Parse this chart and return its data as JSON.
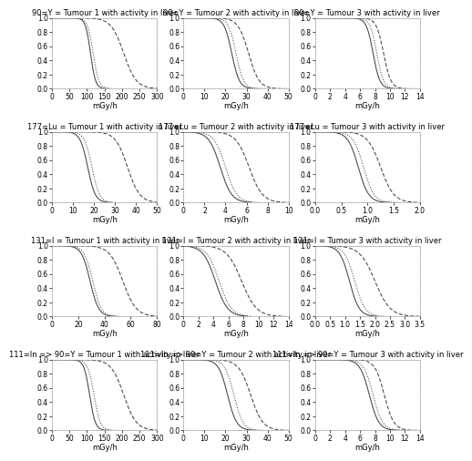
{
  "subplots": [
    {
      "title": "90=Y = Tumour 1 with activity in liver",
      "xlabel": "mGy/h",
      "xlim": [
        0,
        300
      ],
      "xticks": [
        0,
        50,
        100,
        150,
        200,
        250,
        300
      ],
      "curves": [
        {
          "x_start": 90,
          "x_end": 130,
          "style": "solid"
        },
        {
          "x_start": 95,
          "x_end": 140,
          "style": "dotted"
        },
        {
          "x_start": 155,
          "x_end": 255,
          "style": "dashed"
        }
      ]
    },
    {
      "title": "90=Y = Tumour 2 with activity in liver",
      "xlabel": "mGy/h",
      "xlim": [
        0,
        50
      ],
      "xticks": [
        0,
        10,
        20,
        30,
        40,
        50
      ],
      "curves": [
        {
          "x_start": 18,
          "x_end": 28,
          "style": "solid"
        },
        {
          "x_start": 20,
          "x_end": 30,
          "style": "dotted"
        },
        {
          "x_start": 24,
          "x_end": 38,
          "style": "dashed"
        }
      ]
    },
    {
      "title": "90=Y = Tumour 3 with activity in liver",
      "xlabel": "mGy/h",
      "xlim": [
        0,
        14
      ],
      "xticks": [
        0,
        2,
        4,
        6,
        8,
        10,
        12,
        14
      ],
      "curves": [
        {
          "x_start": 6.5,
          "x_end": 9.0,
          "style": "solid"
        },
        {
          "x_start": 7.0,
          "x_end": 9.5,
          "style": "dotted"
        },
        {
          "x_start": 7.8,
          "x_end": 10.5,
          "style": "dashed"
        }
      ]
    },
    {
      "title": "177=Lu = Tumour 1 with activity in liver",
      "xlabel": "mGy/h",
      "xlim": [
        0,
        50
      ],
      "xticks": [
        0,
        10,
        20,
        30,
        40,
        50
      ],
      "curves": [
        {
          "x_start": 12,
          "x_end": 22,
          "style": "solid"
        },
        {
          "x_start": 14,
          "x_end": 24,
          "style": "dotted"
        },
        {
          "x_start": 28,
          "x_end": 44,
          "style": "dashed"
        }
      ]
    },
    {
      "title": "177=Lu = Tumour 2 with activity in liver",
      "xlabel": "mGy/h",
      "xlim": [
        0,
        10
      ],
      "xticks": [
        0,
        2,
        4,
        6,
        8,
        10
      ],
      "curves": [
        {
          "x_start": 2.0,
          "x_end": 5.0,
          "style": "solid"
        },
        {
          "x_start": 2.5,
          "x_end": 5.5,
          "style": "dotted"
        },
        {
          "x_start": 4.5,
          "x_end": 8.0,
          "style": "dashed"
        }
      ]
    },
    {
      "title": "177=Lu = Tumour 3 with activity in liver",
      "xlabel": "mGy/h",
      "xlim": [
        0,
        2.0
      ],
      "xticks": [
        0,
        0.5,
        1.0,
        1.5,
        2.0
      ],
      "curves": [
        {
          "x_start": 0.55,
          "x_end": 1.1,
          "style": "solid"
        },
        {
          "x_start": 0.65,
          "x_end": 1.2,
          "style": "dotted"
        },
        {
          "x_start": 0.9,
          "x_end": 1.6,
          "style": "dashed"
        }
      ]
    },
    {
      "title": "131=I = Tumour 1 with activity in liver",
      "xlabel": "mGy/h",
      "xlim": [
        0,
        80
      ],
      "xticks": [
        0,
        20,
        40,
        60,
        80
      ],
      "curves": [
        {
          "x_start": 20,
          "x_end": 38,
          "style": "solid"
        },
        {
          "x_start": 22,
          "x_end": 40,
          "style": "dotted"
        },
        {
          "x_start": 40,
          "x_end": 68,
          "style": "dashed"
        }
      ]
    },
    {
      "title": "131=I = Tumour 2 with activity in liver",
      "xlabel": "mGy/h",
      "xlim": [
        0,
        14
      ],
      "xticks": [
        0,
        2,
        4,
        6,
        8,
        10,
        12,
        14
      ],
      "curves": [
        {
          "x_start": 2.0,
          "x_end": 6.5,
          "style": "solid"
        },
        {
          "x_start": 2.5,
          "x_end": 7.0,
          "style": "dotted"
        },
        {
          "x_start": 5.0,
          "x_end": 10.5,
          "style": "dashed"
        }
      ]
    },
    {
      "title": "131=I = Tumour 3 with activity in liver",
      "xlabel": "mGy/h",
      "xlim": [
        0,
        3.5
      ],
      "xticks": [
        0,
        0.5,
        1.0,
        1.5,
        2.0,
        2.5,
        3.0,
        3.5
      ],
      "curves": [
        {
          "x_start": 0.7,
          "x_end": 1.6,
          "style": "solid"
        },
        {
          "x_start": 0.85,
          "x_end": 1.8,
          "style": "dotted"
        },
        {
          "x_start": 1.3,
          "x_end": 2.7,
          "style": "dashed"
        }
      ]
    },
    {
      "title": "111=In => 90=Y = Tumour 1 with activity in liver",
      "xlabel": "mGy/h",
      "xlim": [
        0,
        300
      ],
      "xticks": [
        0,
        50,
        100,
        150,
        200,
        250,
        300
      ],
      "curves": [
        {
          "x_start": 85,
          "x_end": 130,
          "style": "solid"
        },
        {
          "x_start": 95,
          "x_end": 145,
          "style": "dotted"
        },
        {
          "x_start": 155,
          "x_end": 255,
          "style": "dashed"
        }
      ]
    },
    {
      "title": "111=In => 90=Y = Tumour 2 with activity in liver",
      "xlabel": "mGy/h",
      "xlim": [
        0,
        50
      ],
      "xticks": [
        0,
        10,
        20,
        30,
        40,
        50
      ],
      "curves": [
        {
          "x_start": 15,
          "x_end": 27,
          "style": "solid"
        },
        {
          "x_start": 18,
          "x_end": 30,
          "style": "dotted"
        },
        {
          "x_start": 24,
          "x_end": 40,
          "style": "dashed"
        }
      ]
    },
    {
      "title": "111=In => 90=Y = Tumour 3 with activity in liver",
      "xlabel": "mGy/h",
      "xlim": [
        0,
        14
      ],
      "xticks": [
        0,
        2,
        4,
        6,
        8,
        10,
        12,
        14
      ],
      "curves": [
        {
          "x_start": 5.5,
          "x_end": 9.0,
          "style": "solid"
        },
        {
          "x_start": 6.0,
          "x_end": 9.5,
          "style": "dotted"
        },
        {
          "x_start": 7.5,
          "x_end": 11.0,
          "style": "dashed"
        }
      ]
    }
  ],
  "ylim": [
    0,
    1.0
  ],
  "yticks": [
    0.0,
    0.2,
    0.4,
    0.6,
    0.8,
    1.0
  ],
  "line_color": "#444444",
  "bg_color": "#ffffff",
  "fontsize_title": 6.0,
  "fontsize_tick": 5.5,
  "fontsize_label": 6.0
}
